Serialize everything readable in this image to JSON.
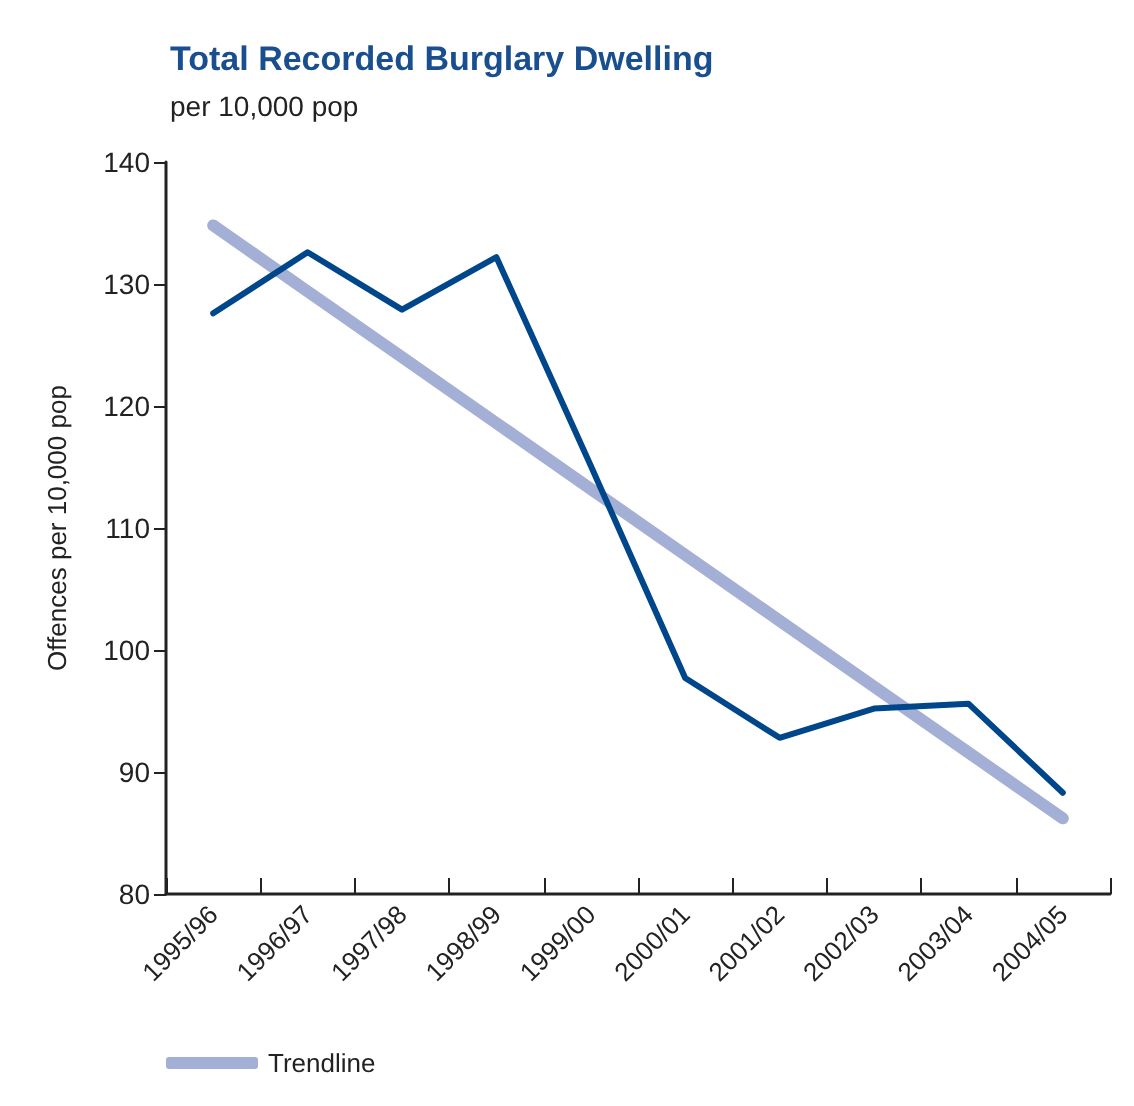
{
  "chart_data": {
    "type": "line",
    "title": "Total Recorded Burglary Dwelling",
    "subtitle": "per 10,000 pop",
    "ylabel": "Offences per 10,000 pop",
    "categories": [
      "1995/96",
      "1996/97",
      "1997/98",
      "1998/99",
      "1999/00",
      "2000/01",
      "2001/02",
      "2002/03",
      "2003/04",
      "2004/05"
    ],
    "series": [
      {
        "color": "#00468b",
        "values": [
          127.6,
          132.6,
          127.9,
          132.2,
          115.1,
          97.7,
          92.8,
          95.2,
          95.6,
          88.3
        ]
      },
      {
        "name": "Trendline",
        "color": "#a4afd6",
        "values": [
          134.8,
          129.4,
          124.0,
          118.6,
          113.2,
          107.8,
          102.4,
          97.0,
          91.6,
          86.2
        ]
      }
    ],
    "ylim": [
      80,
      140
    ],
    "yticks": [
      80,
      90,
      100,
      110,
      120,
      130,
      140
    ],
    "grid": false,
    "legend": "bottom left",
    "marker": "none",
    "line_style": "solid"
  }
}
